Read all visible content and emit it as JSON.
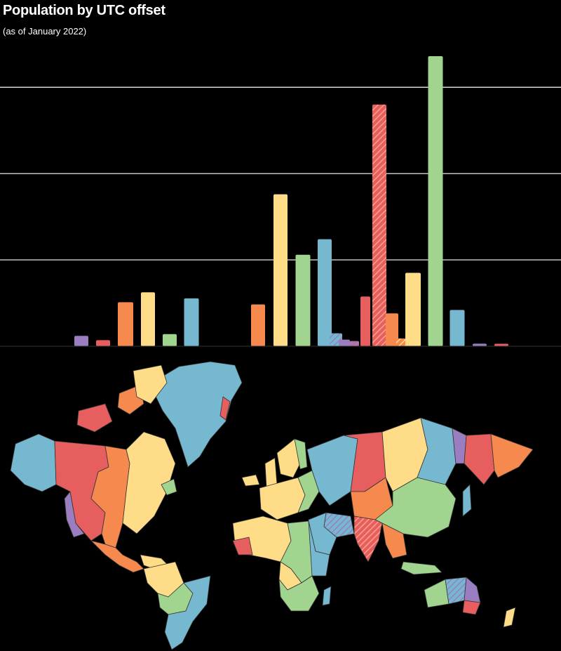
{
  "chart_data": {
    "type": "bar",
    "title": "Population by UTC offset",
    "subtitle": "(as of January 2022)",
    "xlabel": "",
    "ylabel": "",
    "grid": true,
    "legend": "none",
    "ylim": [
      0,
      2300
    ],
    "gridlines": [
      500,
      1000,
      1500
    ],
    "bars": [
      {
        "value": 60,
        "color": "#9b7ec2",
        "hatched": false
      },
      {
        "value": 35,
        "color": "#e65e5e",
        "hatched": false
      },
      {
        "value": 255,
        "color": "#f5894e",
        "hatched": false
      },
      {
        "value": 312,
        "color": "#ffdd88",
        "hatched": false
      },
      {
        "value": 70,
        "color": "#a1d48e",
        "hatched": false
      },
      {
        "value": 277,
        "color": "#75b8d0",
        "hatched": false
      },
      {
        "value": 242,
        "color": "#f5894e",
        "hatched": false
      },
      {
        "value": 880,
        "color": "#ffdd88",
        "hatched": false
      },
      {
        "value": 530,
        "color": "#a1d48e",
        "hatched": false
      },
      {
        "value": 620,
        "color": "#75b8d0",
        "hatched": false
      },
      {
        "value": 75,
        "color": "#75b8d0",
        "hatched": true
      },
      {
        "value": 38,
        "color": "#9b7ec2",
        "hatched": false
      },
      {
        "value": 30,
        "color": "#9b7ec2",
        "hatched": true
      },
      {
        "value": 288,
        "color": "#e65e5e",
        "hatched": false
      },
      {
        "value": 1400,
        "color": "#e65e5e",
        "hatched": true
      },
      {
        "value": 190,
        "color": "#f5894e",
        "hatched": false
      },
      {
        "value": 45,
        "color": "#f5894e",
        "hatched": true
      },
      {
        "value": 425,
        "color": "#ffdd88",
        "hatched": false
      },
      {
        "value": 1680,
        "color": "#a1d48e",
        "hatched": false
      },
      {
        "value": 210,
        "color": "#75b8d0",
        "hatched": false
      },
      {
        "value": 15,
        "color": "#9b7ec2",
        "hatched": false
      },
      {
        "value": 14,
        "color": "#e65e5e",
        "hatched": false
      }
    ]
  },
  "map": {
    "colors": {
      "purple": "#9b7ec2",
      "red": "#e65e5e",
      "orange": "#f5894e",
      "yellow": "#ffdd88",
      "green": "#a1d48e",
      "blue": "#75b8d0"
    }
  }
}
